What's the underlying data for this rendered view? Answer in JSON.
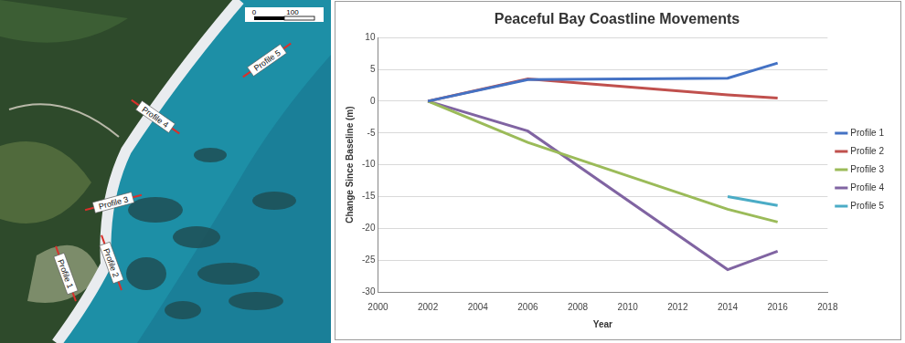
{
  "chart_data": {
    "type": "line",
    "title": "Peaceful Bay Coastline Movements",
    "x_label": "Year",
    "y_label": "Change Since Baseline (m)",
    "x": [
      2002,
      2006,
      2014,
      2016
    ],
    "series": [
      {
        "name": "Profile 1",
        "color": "#4472c4",
        "values": [
          0,
          3.4,
          3.6,
          6
        ]
      },
      {
        "name": "Profile 2",
        "color": "#c0504d",
        "values": [
          0,
          3.5,
          1,
          0.5
        ]
      },
      {
        "name": "Profile 3",
        "color": "#9bbb59",
        "values": [
          0,
          -6.5,
          -17,
          -19
        ]
      },
      {
        "name": "Profile 4",
        "color": "#8064a2",
        "values": [
          0,
          -4.7,
          -26.5,
          -23.6
        ]
      },
      {
        "name": "Profile 5",
        "color": "#4bacc6",
        "values": [
          null,
          null,
          -15,
          -16.4
        ]
      }
    ],
    "xlim": [
      2000,
      2018
    ],
    "xticks": [
      2000,
      2002,
      2004,
      2006,
      2008,
      2010,
      2012,
      2014,
      2016,
      2018
    ],
    "ylim": [
      -30,
      10
    ],
    "yticks": [
      -30,
      -25,
      -20,
      -15,
      -10,
      -5,
      0,
      5,
      10
    ],
    "grid": true,
    "legend": "right"
  },
  "map": {
    "profiles": [
      "Profile 1",
      "Profile 2",
      "Profile 3",
      "Profile 4",
      "Profile 5"
    ],
    "scale_ticks": [
      0,
      100
    ]
  }
}
